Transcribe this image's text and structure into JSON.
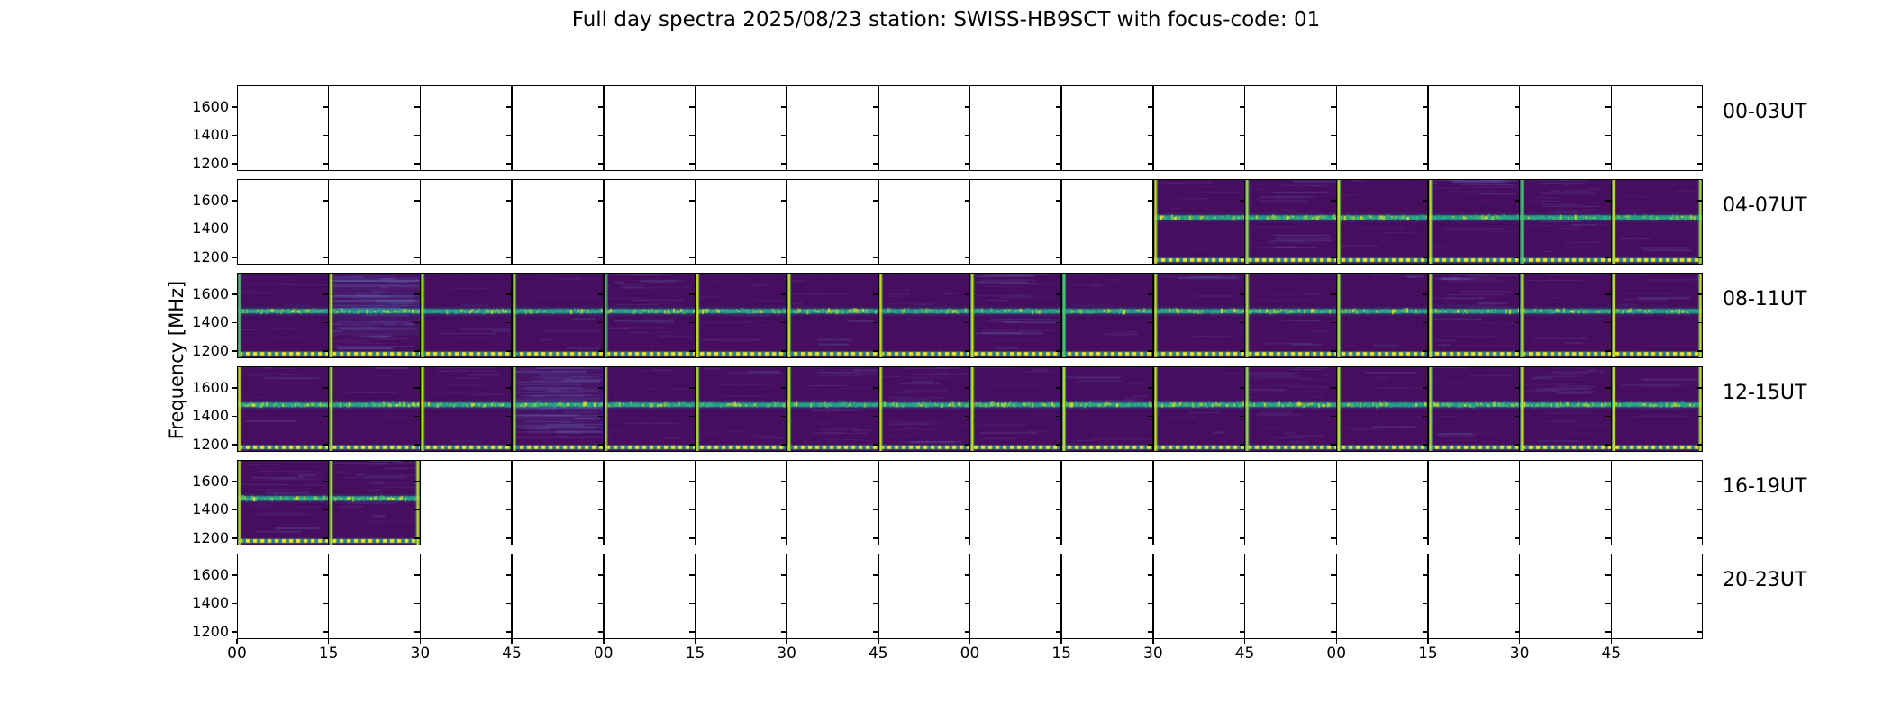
{
  "chart_data": {
    "type": "heatmap",
    "title": "Full day spectra 2025/08/23 station: SWISS-HB9SCT with focus-code: 01",
    "ylabel": "Frequency [MHz]",
    "ylim": [
      1150,
      1750
    ],
    "yticks": [
      1600,
      1400,
      1200
    ],
    "x_tick_labels": [
      "00",
      "15",
      "30",
      "45",
      "00",
      "15",
      "30",
      "45",
      "00",
      "15",
      "30",
      "45",
      "00",
      "15",
      "30",
      "45"
    ],
    "segments_per_row": 16,
    "segment_minutes": 15,
    "signal_band_mhz": 1480,
    "legend": "none",
    "grid": "segment boundaries every 15 minutes",
    "rows": [
      {
        "label": "00-03UT",
        "filled": null,
        "light_noise_segments": [],
        "heavy_noise_segments": []
      },
      {
        "label": "04-07UT",
        "filled": {
          "from_segment": 10,
          "to_segment": 15,
          "data_start_ut": "06:30"
        },
        "light_noise_segments": [
          11,
          13,
          14
        ],
        "heavy_noise_segments": []
      },
      {
        "label": "08-11UT",
        "filled": {
          "from_segment": 0,
          "to_segment": 15
        },
        "light_noise_segments": [
          4,
          8,
          13
        ],
        "heavy_noise_segments": [
          1
        ]
      },
      {
        "label": "12-15UT",
        "filled": {
          "from_segment": 0,
          "to_segment": 15
        },
        "light_noise_segments": [
          6,
          7,
          11,
          14
        ],
        "heavy_noise_segments": [
          3
        ]
      },
      {
        "label": "16-19UT",
        "filled": {
          "from_segment": 0,
          "to_segment": 1,
          "data_end_ut": "16:30"
        },
        "light_noise_segments": [
          0,
          1
        ],
        "heavy_noise_segments": []
      },
      {
        "label": "20-23UT",
        "filled": null,
        "light_noise_segments": [],
        "heavy_noise_segments": []
      }
    ],
    "colors": {
      "figure_background": "#ffffff",
      "axis": "#000000",
      "spectrogram_background": "#470d5e",
      "band_core_teal": "#20908c",
      "band_speckle_green": "#3fb873",
      "band_speckle_lime": "#8ed645",
      "band_speckle_yellow": "#fde725",
      "band_halo": "#22868c",
      "segment_line_yellow": "#d8e219",
      "segment_line_green": "#52c569",
      "segment_line_fringe": "#2da082",
      "dotted_line_yellow": "#f6e61e",
      "dotted_line_background": "#26828e",
      "noise_streak_blue": "#6e78c8"
    }
  }
}
